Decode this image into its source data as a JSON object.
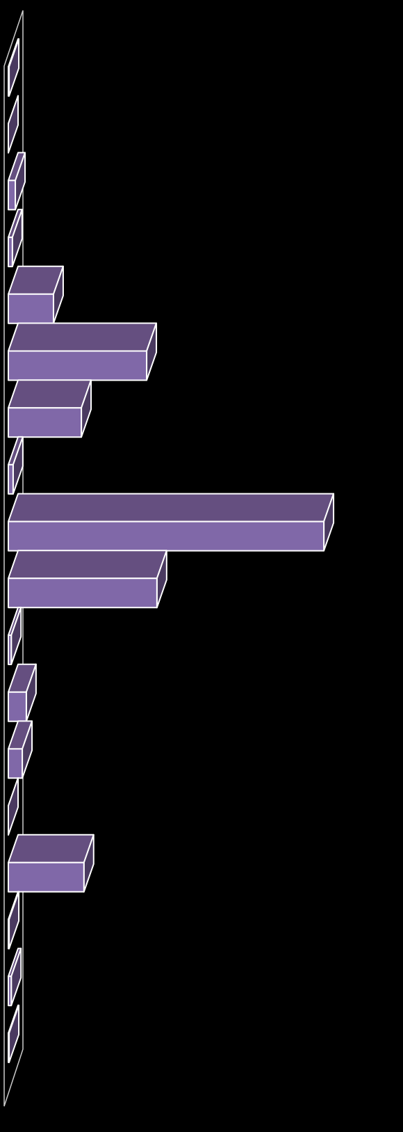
{
  "chart_data": {
    "type": "bar3d_horizontal",
    "categories": [
      null,
      null,
      null,
      null,
      null,
      null,
      null,
      null,
      null,
      null,
      null,
      null,
      null,
      null,
      null,
      null,
      null,
      null
    ],
    "values": [
      0.2,
      0,
      1.9,
      1.1,
      12.3,
      37.7,
      19.9,
      1.3,
      86,
      40.5,
      0.8,
      4.9,
      3.8,
      0,
      20.6,
      0.2,
      0.8,
      0.2
    ],
    "xlim": [
      0,
      100
    ],
    "colors": {
      "front": "#8068a8",
      "top": "#654f80",
      "side": "#4a3a60",
      "edge": "#ffffff"
    }
  }
}
